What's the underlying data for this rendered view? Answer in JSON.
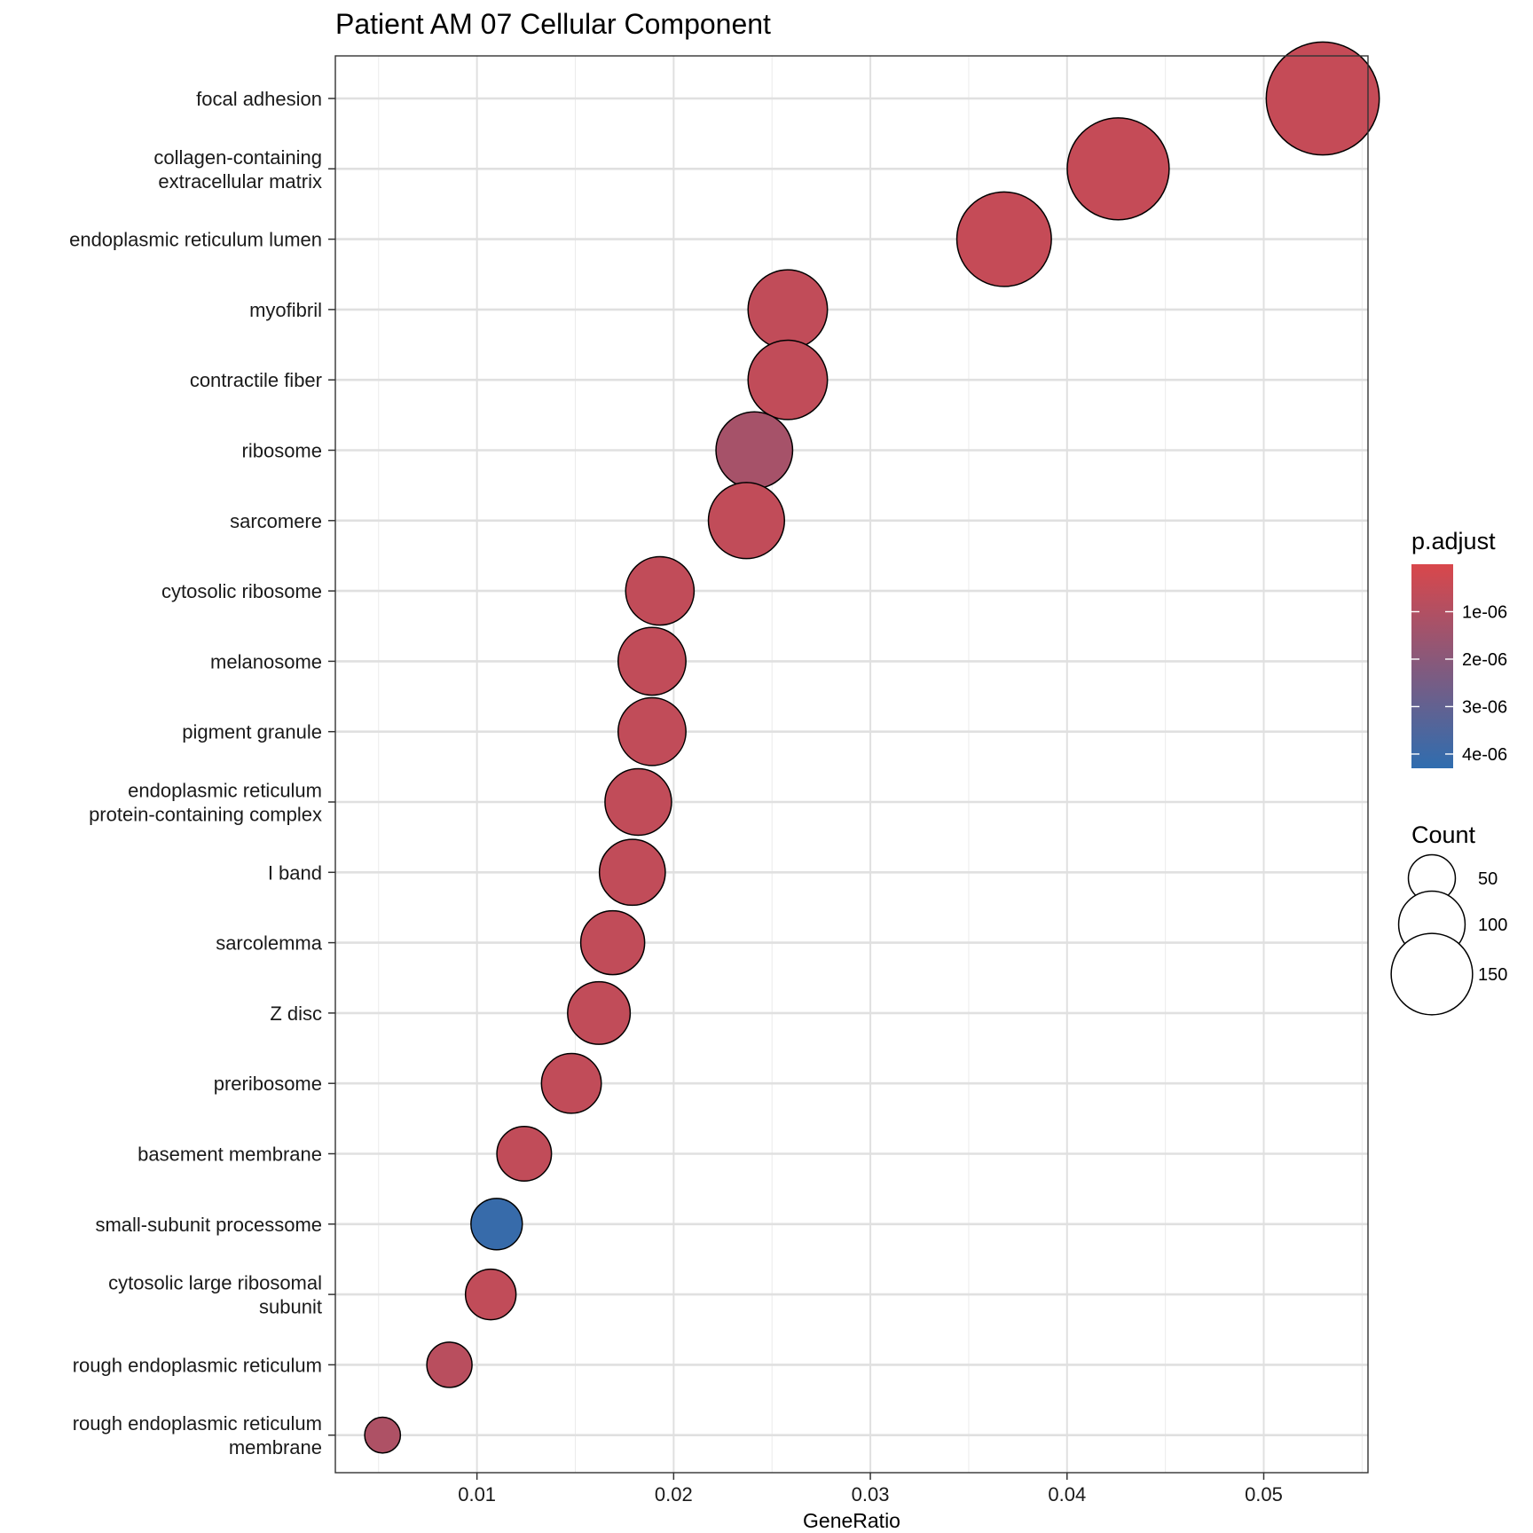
{
  "chart_data": {
    "type": "scatter",
    "title": "Patient AM 07 Cellular Component",
    "xlabel": "GeneRatio",
    "ylabel": "",
    "xlim": [
      0.0028,
      0.0553
    ],
    "xticks": [
      0.01,
      0.02,
      0.03,
      0.04,
      0.05
    ],
    "xtick_labels": [
      "0.01",
      "0.02",
      "0.03",
      "0.04",
      "0.05"
    ],
    "grid": true,
    "legend_position": "right",
    "terms": [
      {
        "label": [
          "focal adhesion"
        ],
        "gene_ratio": 0.053,
        "count": 150,
        "p_adjust": 5e-07
      },
      {
        "label": [
          "collagen-containing",
          "extracellular matrix"
        ],
        "gene_ratio": 0.0426,
        "count": 122,
        "p_adjust": 5e-07
      },
      {
        "label": [
          "endoplasmic reticulum lumen"
        ],
        "gene_ratio": 0.0368,
        "count": 105,
        "p_adjust": 5e-07
      },
      {
        "label": [
          "myofibril"
        ],
        "gene_ratio": 0.0258,
        "count": 74,
        "p_adjust": 6e-07
      },
      {
        "label": [
          "contractile fiber"
        ],
        "gene_ratio": 0.0258,
        "count": 74,
        "p_adjust": 6e-07
      },
      {
        "label": [
          "ribosome"
        ],
        "gene_ratio": 0.0241,
        "count": 69,
        "p_adjust": 1.3e-06
      },
      {
        "label": [
          "sarcomere"
        ],
        "gene_ratio": 0.0237,
        "count": 68,
        "p_adjust": 6e-07
      },
      {
        "label": [
          "cytosolic ribosome"
        ],
        "gene_ratio": 0.0193,
        "count": 55,
        "p_adjust": 6e-07
      },
      {
        "label": [
          "melanosome"
        ],
        "gene_ratio": 0.0189,
        "count": 54,
        "p_adjust": 6e-07
      },
      {
        "label": [
          "pigment granule"
        ],
        "gene_ratio": 0.0189,
        "count": 54,
        "p_adjust": 6e-07
      },
      {
        "label": [
          "endoplasmic reticulum",
          "protein-containing complex"
        ],
        "gene_ratio": 0.0182,
        "count": 52,
        "p_adjust": 6e-07
      },
      {
        "label": [
          "I band"
        ],
        "gene_ratio": 0.0179,
        "count": 51,
        "p_adjust": 6e-07
      },
      {
        "label": [
          "sarcolemma"
        ],
        "gene_ratio": 0.0169,
        "count": 48,
        "p_adjust": 6e-07
      },
      {
        "label": [
          "Z disc"
        ],
        "gene_ratio": 0.0162,
        "count": 46,
        "p_adjust": 6e-07
      },
      {
        "label": [
          "preribosome"
        ],
        "gene_ratio": 0.0148,
        "count": 42,
        "p_adjust": 6e-07
      },
      {
        "label": [
          "basement membrane"
        ],
        "gene_ratio": 0.0124,
        "count": 35,
        "p_adjust": 6e-07
      },
      {
        "label": [
          "small-subunit processome"
        ],
        "gene_ratio": 0.011,
        "count": 31,
        "p_adjust": 4.1e-06
      },
      {
        "label": [
          "cytosolic large ribosomal",
          "subunit"
        ],
        "gene_ratio": 0.0107,
        "count": 30,
        "p_adjust": 6e-07
      },
      {
        "label": [
          "rough endoplasmic reticulum"
        ],
        "gene_ratio": 0.0086,
        "count": 24,
        "p_adjust": 8e-07
      },
      {
        "label": [
          "rough endoplasmic reticulum",
          "membrane"
        ],
        "gene_ratio": 0.0052,
        "count": 15,
        "p_adjust": 1.1e-06
      }
    ],
    "color_legend": {
      "title": "p.adjust",
      "low_color": "#D9474B",
      "high_color": "#2F6DAF",
      "range": [
        0,
        4.3e-06
      ],
      "ticks": [
        1e-06,
        2e-06,
        3e-06,
        4e-06
      ],
      "tick_labels": [
        "1e-06",
        "2e-06",
        "3e-06",
        "4e-06"
      ]
    },
    "size_legend": {
      "title": "Count",
      "values": [
        50,
        100,
        150
      ],
      "labels": [
        "50",
        "100",
        "150"
      ]
    }
  }
}
